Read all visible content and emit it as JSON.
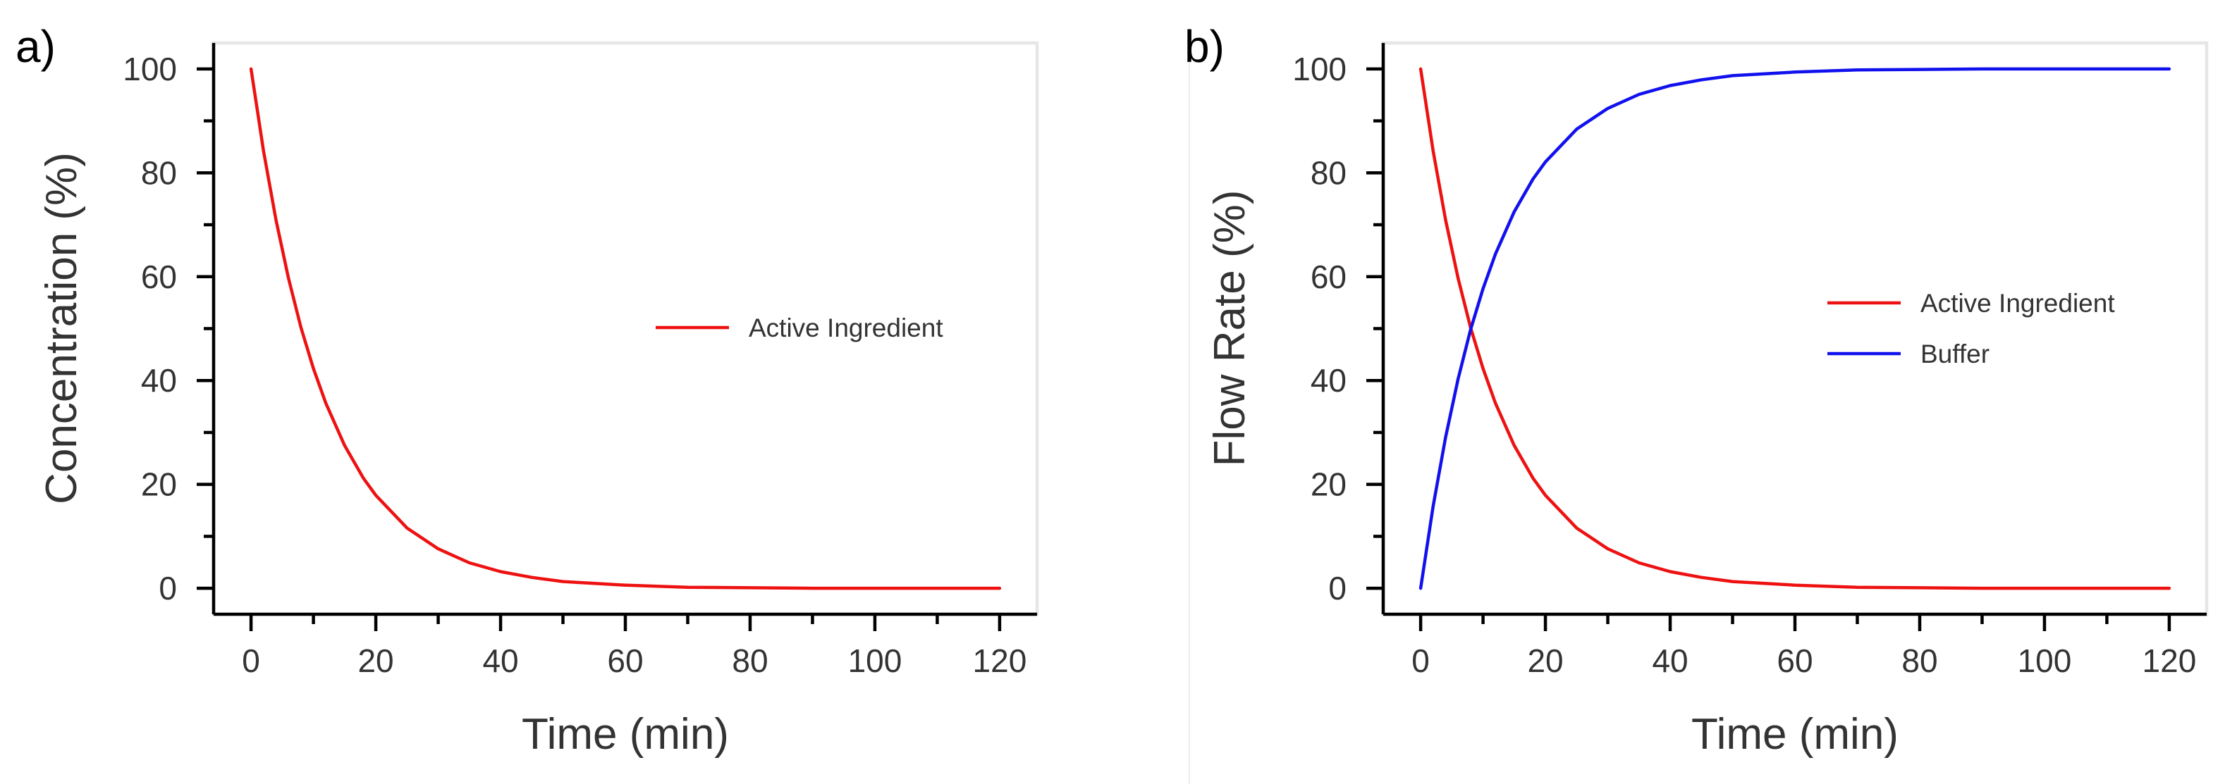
{
  "chart_data": [
    {
      "type": "line",
      "panel_label": "a)",
      "title": "",
      "xlabel": "Time (min)",
      "ylabel": "Concentration (%)",
      "xlim": [
        -6,
        126
      ],
      "ylim": [
        -5,
        105
      ],
      "xticks": [
        0,
        20,
        40,
        60,
        80,
        100,
        120
      ],
      "xminor": [
        10,
        30,
        50,
        70,
        90,
        110
      ],
      "yticks": [
        0,
        20,
        40,
        60,
        80,
        100
      ],
      "yminor": [
        10,
        30,
        50,
        70,
        90
      ],
      "legend_position": "center-right",
      "series": [
        {
          "name": "Active Ingredient",
          "color": "#ee1111",
          "x": [
            0,
            2,
            4,
            6,
            8,
            10,
            12,
            15,
            18,
            20,
            25,
            30,
            35,
            40,
            45,
            50,
            60,
            70,
            80,
            90,
            100,
            110,
            120
          ],
          "values": [
            100,
            84.2,
            70.9,
            59.7,
            50.2,
            42.3,
            35.6,
            27.5,
            21.2,
            17.9,
            11.6,
            7.6,
            4.9,
            3.2,
            2.1,
            1.3,
            0.6,
            0.2,
            0.1,
            0.0,
            0.0,
            0.0,
            0.0
          ]
        }
      ]
    },
    {
      "type": "line",
      "panel_label": "b)",
      "title": "",
      "xlabel": "Time (min)",
      "ylabel": "Flow Rate (%)",
      "xlim": [
        -6,
        126
      ],
      "ylim": [
        -5,
        105
      ],
      "xticks": [
        0,
        20,
        40,
        60,
        80,
        100,
        120
      ],
      "xminor": [
        10,
        30,
        50,
        70,
        90,
        110
      ],
      "yticks": [
        0,
        20,
        40,
        60,
        80,
        100
      ],
      "yminor": [
        10,
        30,
        50,
        70,
        90
      ],
      "legend_position": "center-right",
      "series": [
        {
          "name": "Active Ingredient",
          "color": "#ee1111",
          "x": [
            0,
            2,
            4,
            6,
            8,
            10,
            12,
            15,
            18,
            20,
            25,
            30,
            35,
            40,
            45,
            50,
            60,
            70,
            80,
            90,
            100,
            110,
            120
          ],
          "values": [
            100,
            84.2,
            70.9,
            59.7,
            50.2,
            42.3,
            35.6,
            27.5,
            21.2,
            17.9,
            11.6,
            7.6,
            4.9,
            3.2,
            2.1,
            1.3,
            0.6,
            0.2,
            0.1,
            0.0,
            0.0,
            0.0,
            0.0
          ]
        },
        {
          "name": "Buffer",
          "color": "#1111ee",
          "x": [
            0,
            2,
            4,
            6,
            8,
            10,
            12,
            15,
            18,
            20,
            25,
            30,
            35,
            40,
            45,
            50,
            60,
            70,
            80,
            90,
            100,
            110,
            120
          ],
          "values": [
            0,
            15.8,
            29.1,
            40.3,
            49.8,
            57.7,
            64.4,
            72.5,
            78.8,
            82.1,
            88.4,
            92.4,
            95.1,
            96.8,
            97.9,
            98.7,
            99.4,
            99.8,
            99.9,
            100,
            100,
            100,
            100
          ]
        }
      ]
    }
  ]
}
